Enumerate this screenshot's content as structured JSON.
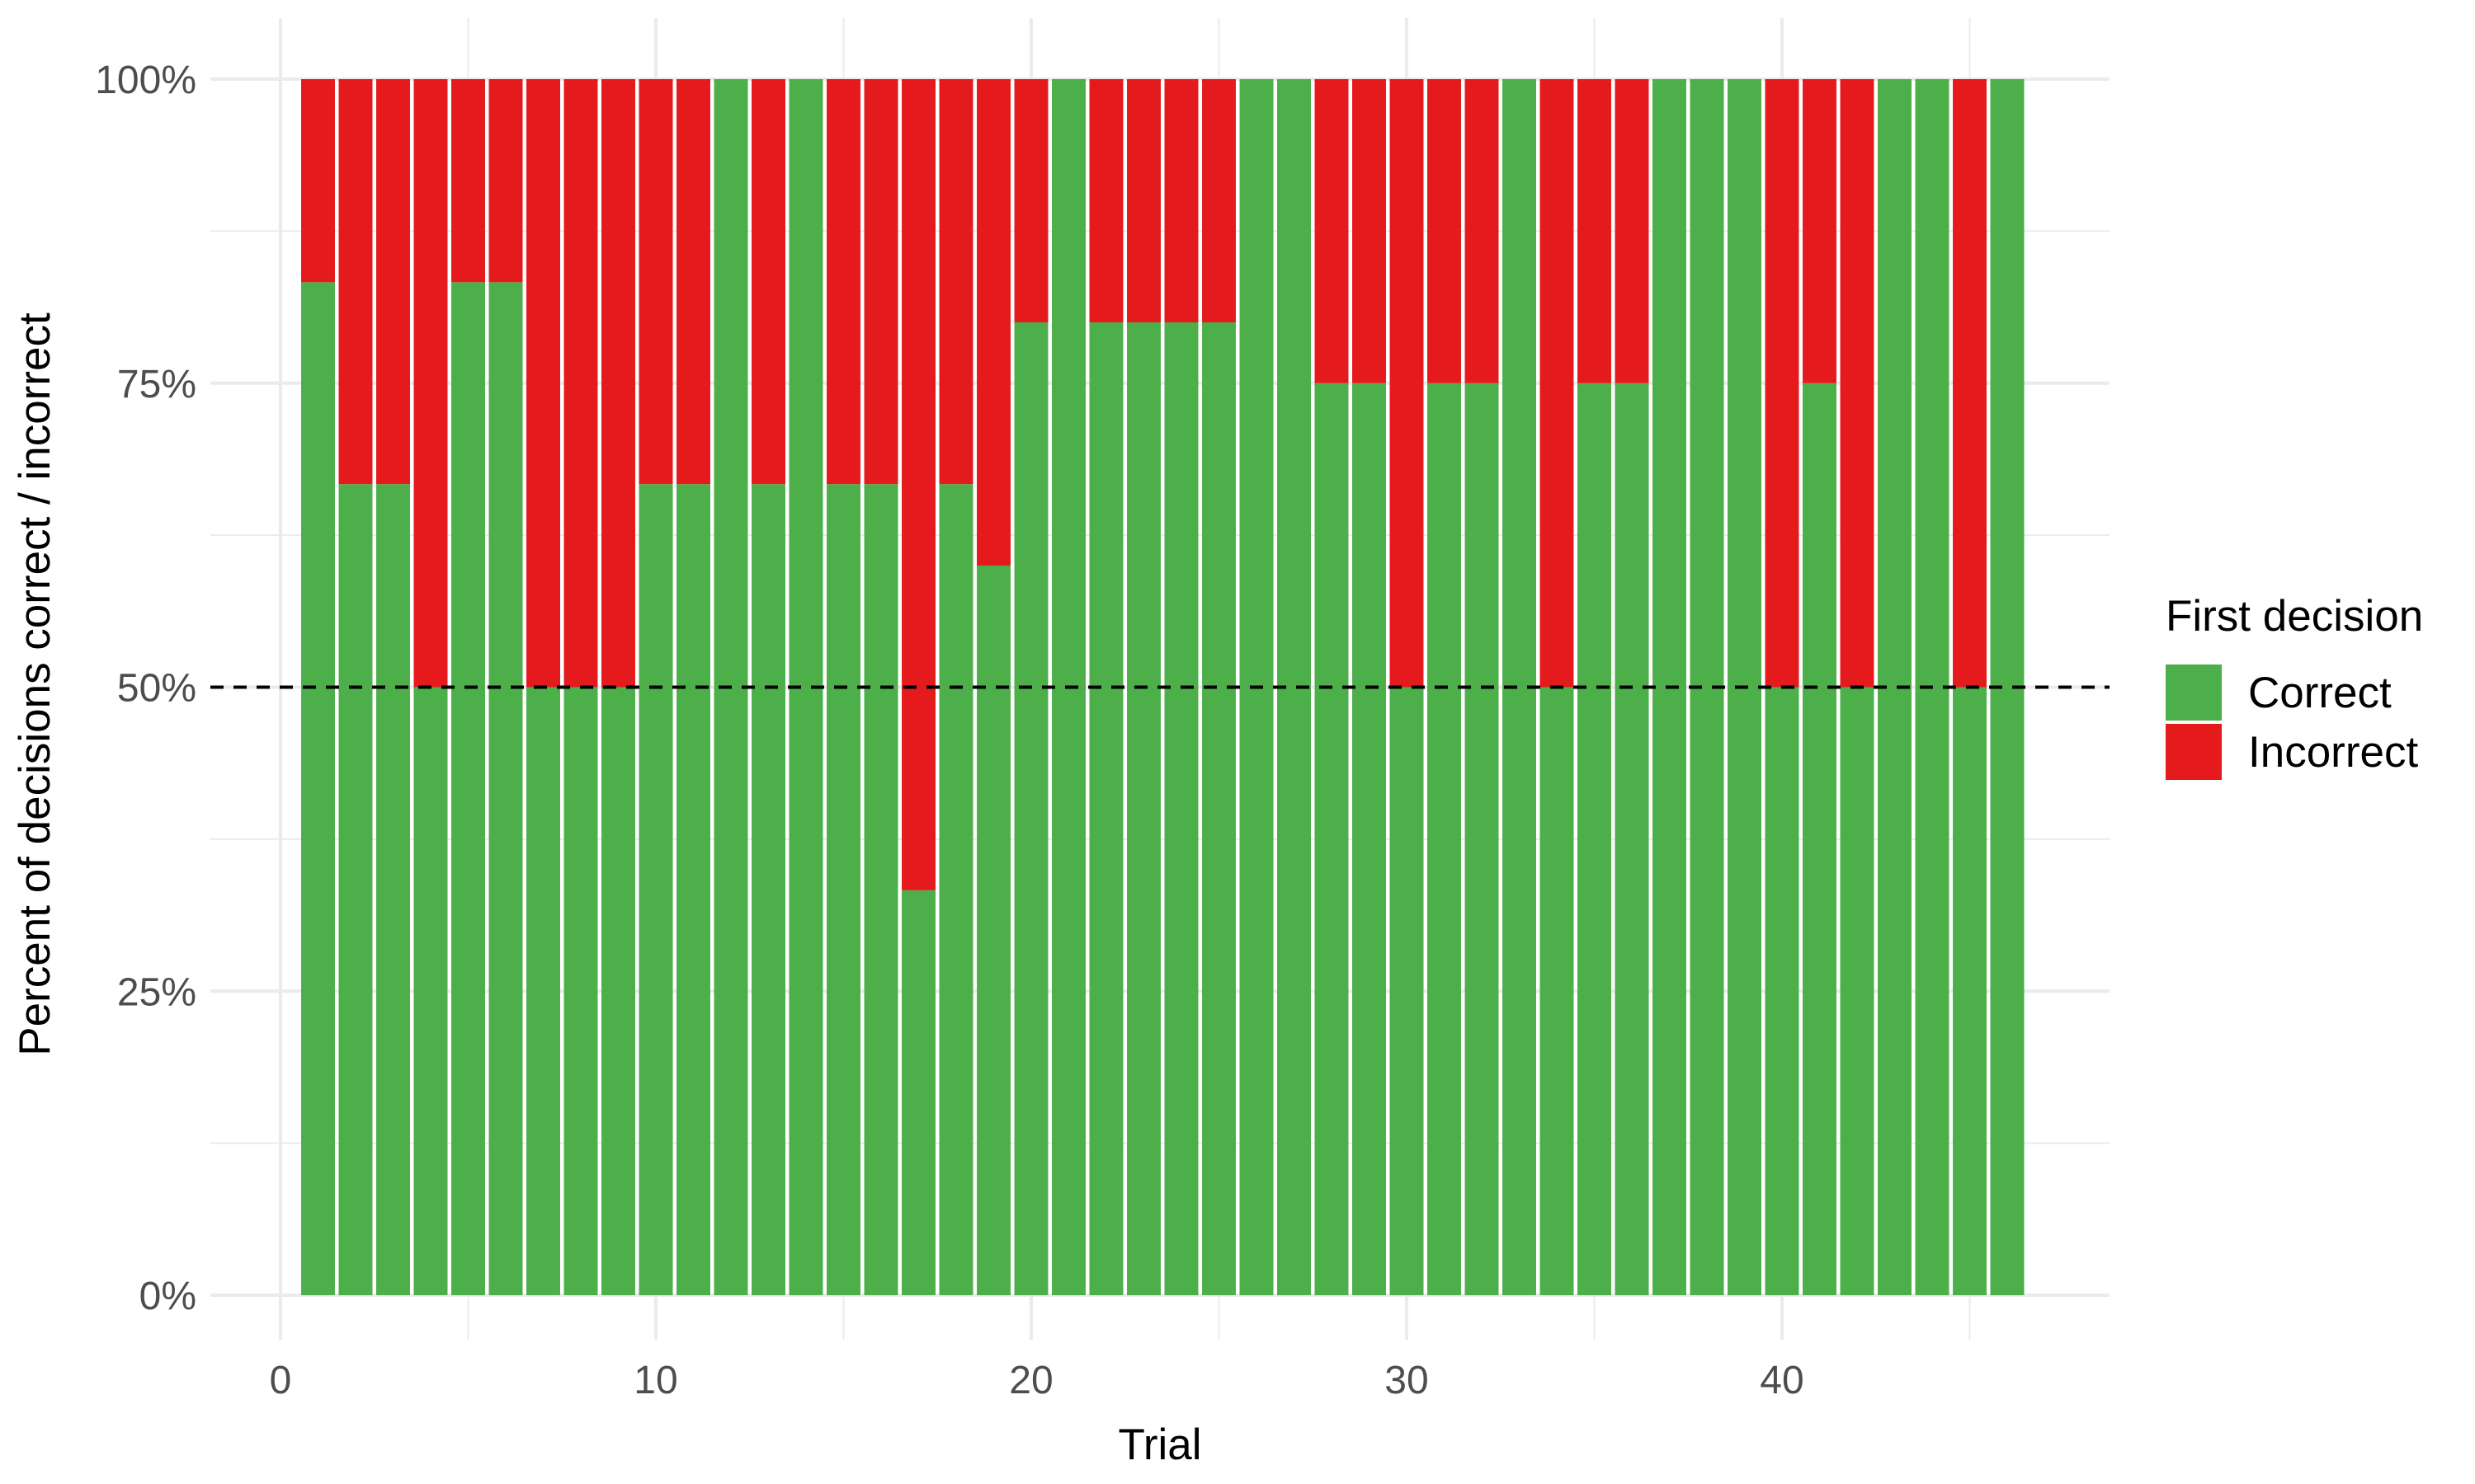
{
  "chart_data": {
    "type": "bar",
    "stacked": true,
    "normalized": true,
    "title": "",
    "xlabel": "Trial",
    "ylabel": "Percent of decisions correct / incorrect",
    "x": [
      1,
      2,
      3,
      4,
      5,
      6,
      7,
      8,
      9,
      10,
      11,
      12,
      13,
      14,
      15,
      16,
      17,
      18,
      19,
      20,
      21,
      22,
      23,
      24,
      25,
      26,
      27,
      28,
      29,
      30,
      31,
      32,
      33,
      34,
      35,
      36,
      37,
      38,
      39,
      40,
      41,
      42,
      43,
      44,
      45,
      46
    ],
    "series": [
      {
        "name": "Correct",
        "color": "#4daf4a",
        "values": [
          0.833,
          0.667,
          0.667,
          0.5,
          0.833,
          0.833,
          0.5,
          0.5,
          0.5,
          0.667,
          0.667,
          1.0,
          0.667,
          1.0,
          0.667,
          0.667,
          0.333,
          0.667,
          0.6,
          0.8,
          1.0,
          0.8,
          0.8,
          0.8,
          0.8,
          1.0,
          1.0,
          0.75,
          0.75,
          0.5,
          0.75,
          0.75,
          1.0,
          0.5,
          0.75,
          0.75,
          1.0,
          1.0,
          1.0,
          0.5,
          0.75,
          0.5,
          1.0,
          1.0,
          0.5,
          1.0
        ]
      },
      {
        "name": "Incorrect",
        "color": "#e41a1c",
        "values": [
          0.167,
          0.333,
          0.333,
          0.5,
          0.167,
          0.167,
          0.5,
          0.5,
          0.5,
          0.333,
          0.333,
          0.0,
          0.333,
          0.0,
          0.333,
          0.333,
          0.667,
          0.333,
          0.4,
          0.2,
          0.0,
          0.2,
          0.2,
          0.2,
          0.2,
          0.0,
          0.0,
          0.25,
          0.25,
          0.5,
          0.25,
          0.25,
          0.0,
          0.5,
          0.25,
          0.25,
          0.0,
          0.0,
          0.0,
          0.5,
          0.25,
          0.5,
          0.0,
          0.0,
          0.5,
          0.0
        ]
      }
    ],
    "xlim": [
      0.5,
      46.5
    ],
    "ylim": [
      0,
      1
    ],
    "xticks": [
      0,
      10,
      20,
      30,
      40
    ],
    "xtick_labels": [
      "0",
      "10",
      "20",
      "30",
      "40"
    ],
    "yticks": [
      0,
      0.25,
      0.5,
      0.75,
      1.0
    ],
    "ytick_labels": [
      "0%",
      "25%",
      "50%",
      "75%",
      "100%"
    ],
    "reference_line": {
      "y": 0.5,
      "style": "dashed",
      "color": "#000000"
    },
    "legend": {
      "title": "First decision",
      "position": "right",
      "entries": [
        {
          "label": "Correct",
          "color": "#4daf4a"
        },
        {
          "label": "Incorrect",
          "color": "#e41a1c"
        }
      ]
    },
    "grid": true
  }
}
